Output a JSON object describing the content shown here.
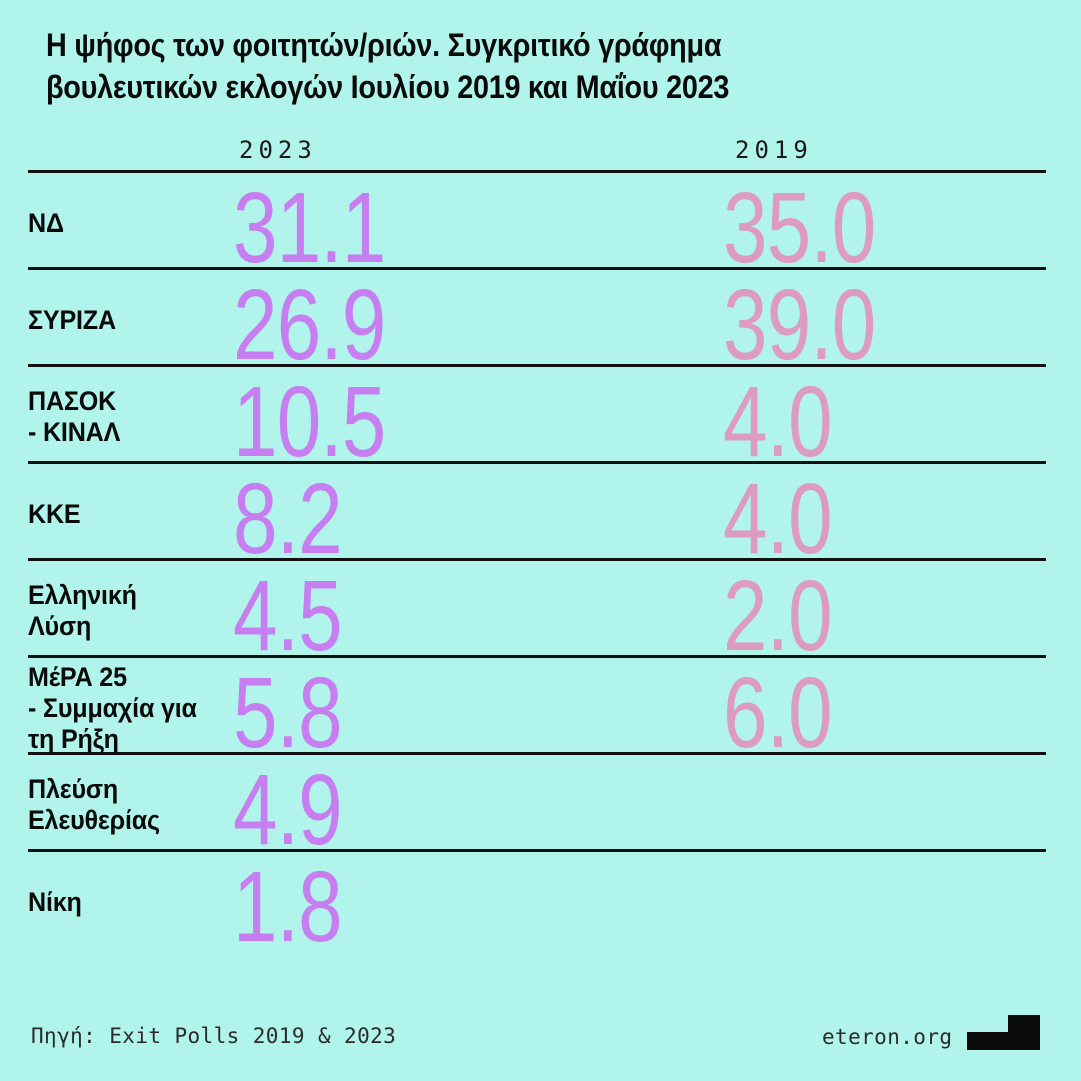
{
  "title": {
    "line1": "Η ψήφος των φοιτητών/ριών. Συγκριτικό γράφημα",
    "line2": "βουλευτικών εκλογών Ιουλίου 2019 και Μαΐου 2023"
  },
  "columns": {
    "col2023": "2023",
    "col2019": "2019"
  },
  "rows": [
    {
      "party": "ΝΔ",
      "v2023": "31.1",
      "v2019": "35.0"
    },
    {
      "party": "ΣΥΡΙΖΑ",
      "v2023": "26.9",
      "v2019": "39.0"
    },
    {
      "party": "ΠΑΣΟΚ\n- ΚΙΝΑΛ",
      "v2023": "10.5",
      "v2019": "4.0"
    },
    {
      "party": "ΚΚΕ",
      "v2023": "8.2",
      "v2019": "4.0"
    },
    {
      "party": "Ελληνική\nΛύση",
      "v2023": "4.5",
      "v2019": "2.0"
    },
    {
      "party": "ΜέΡΑ 25\n- Συμμαχία για\nτη Ρήξη",
      "v2023": "5.8",
      "v2019": "6.0"
    },
    {
      "party": "Πλεύση\nΕλευθερίας",
      "v2023": "4.9",
      "v2019": ""
    },
    {
      "party": "Νίκη",
      "v2023": "1.8",
      "v2019": ""
    }
  ],
  "footer": {
    "source": "Πηγή: Exit Polls 2019 & 2023",
    "site": "eteron.org"
  },
  "colors": {
    "background": "#b0f4eb",
    "value_2023": "#c77ef0",
    "value_2019": "#dd9bbf",
    "line": "#101010",
    "text": "#0a0a0a"
  },
  "chart_data": {
    "type": "table",
    "title": "Η ψήφος των φοιτητών/ριών. Συγκριτικό γράφημα βουλευτικών εκλογών Ιουλίου 2019 και Μαΐου 2023",
    "categories": [
      "ΝΔ",
      "ΣΥΡΙΖΑ",
      "ΠΑΣΟΚ - ΚΙΝΑΛ",
      "ΚΚΕ",
      "Ελληνική Λύση",
      "ΜέΡΑ 25 - Συμμαχία για τη Ρήξη",
      "Πλεύση Ελευθερίας",
      "Νίκη"
    ],
    "series": [
      {
        "name": "2023",
        "values": [
          31.1,
          26.9,
          10.5,
          8.2,
          4.5,
          5.8,
          4.9,
          1.8
        ]
      },
      {
        "name": "2019",
        "values": [
          35.0,
          39.0,
          4.0,
          4.0,
          2.0,
          6.0,
          null,
          null
        ]
      }
    ],
    "unit": "percent",
    "source": "Πηγή: Exit Polls 2019 & 2023",
    "legend_position": "column-headers",
    "grid": "horizontal-separators"
  }
}
